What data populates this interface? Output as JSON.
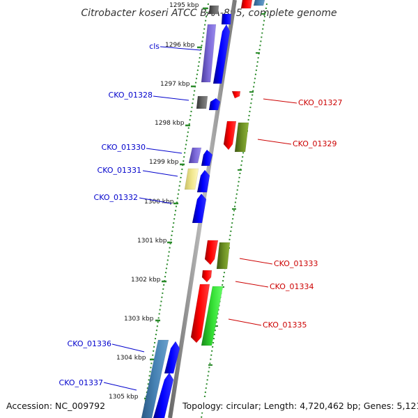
{
  "title": "Citrobacter koseri ATCC BAA-895, complete genome",
  "accession": "Accession: NC_009792",
  "topology": "Topology: circular; Length: 4,720,462 bp; Genes: 5,121",
  "colors": {
    "forward_label": "#0000cc",
    "reverse_label": "#cc0000",
    "cds_blue": "#0000ff",
    "cds_red": "#ff0000",
    "cds_purple": "#7b68d8",
    "cds_gray": "#5a5a5a",
    "cds_olive": "#6b8e23",
    "cds_green": "#33dd33",
    "cds_steel": "#4682b4",
    "cds_pale_yellow": "#f0e68c",
    "backbone": "#8c8c8c",
    "tick_green": "#2a8a2a"
  },
  "scale_labels": [
    "1295 kbp",
    "1296 kbp",
    "1297 kbp",
    "1298 kbp",
    "1299 kbp",
    "1300 kbp",
    "1301 kbp",
    "1302 kbp",
    "1303 kbp",
    "1304 kbp",
    "1305 kbp"
  ],
  "forward_labels": [
    "cls",
    "CKO_01328",
    "CKO_01330",
    "CKO_01331",
    "CKO_01332",
    "CKO_01336",
    "CKO_01337"
  ],
  "reverse_labels": [
    "CKO_01327",
    "CKO_01329",
    "CKO_01333",
    "CKO_01334",
    "CKO_01335"
  ]
}
